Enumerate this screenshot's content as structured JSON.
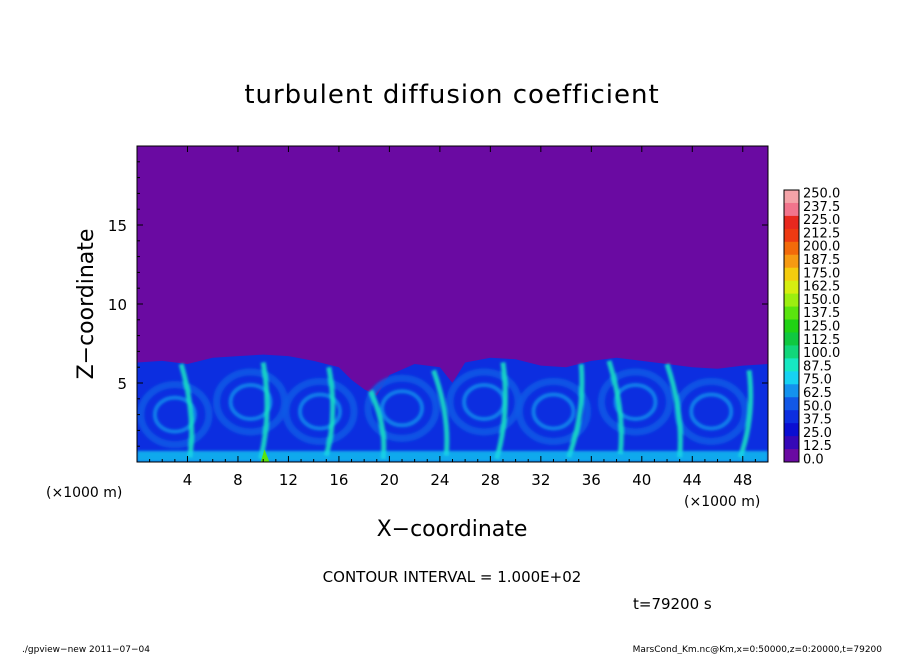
{
  "chart_data": {
    "type": "heatmap",
    "title": "turbulent diffusion coefficient",
    "xlabel": "X−coordinate",
    "ylabel": "Z−coordinate",
    "x_unit_left": "(×1000 m)",
    "x_unit_right": "(×1000 m)",
    "xlim": [
      0,
      50
    ],
    "ylim": [
      0,
      20
    ],
    "x_ticks": [
      4,
      8,
      12,
      16,
      20,
      24,
      28,
      32,
      36,
      40,
      44,
      48
    ],
    "x_tick_labels": [
      "4",
      "8",
      "12",
      "16",
      "20",
      "24",
      "28",
      "32",
      "36",
      "40",
      "44",
      "48"
    ],
    "y_ticks": [
      5,
      10,
      15
    ],
    "y_tick_labels": [
      "5",
      "10",
      "15"
    ],
    "background_value": 0.0,
    "turbulent_layer_top": [
      [
        0,
        6.3
      ],
      [
        2,
        6.4
      ],
      [
        4,
        6.2
      ],
      [
        6,
        6.6
      ],
      [
        8,
        6.7
      ],
      [
        10,
        6.8
      ],
      [
        12,
        6.7
      ],
      [
        14,
        6.4
      ],
      [
        16,
        6.0
      ],
      [
        17,
        5.2
      ],
      [
        18,
        4.6
      ],
      [
        19,
        4.2
      ],
      [
        20,
        5.5
      ],
      [
        22,
        6.2
      ],
      [
        24,
        6.0
      ],
      [
        25,
        5.0
      ],
      [
        26,
        6.3
      ],
      [
        28,
        6.6
      ],
      [
        30,
        6.5
      ],
      [
        32,
        6.1
      ],
      [
        34,
        6.0
      ],
      [
        36,
        6.4
      ],
      [
        38,
        6.6
      ],
      [
        40,
        6.4
      ],
      [
        42,
        6.2
      ],
      [
        44,
        6.0
      ],
      [
        46,
        5.9
      ],
      [
        48,
        6.1
      ],
      [
        50,
        6.2
      ]
    ],
    "colorbar": {
      "min": 0.0,
      "max": 250.0,
      "step": 12.5,
      "labels": [
        "250.0",
        "237.5",
        "225.0",
        "212.5",
        "200.0",
        "187.5",
        "175.0",
        "162.5",
        "150.0",
        "137.5",
        "125.0",
        "112.5",
        "100.0",
        "87.5",
        "75.0",
        "62.5",
        "50.0",
        "37.5",
        "25.0",
        "12.5",
        "0.0"
      ],
      "colors": [
        "#f4a3a8",
        "#f2748c",
        "#e8281e",
        "#ee3a12",
        "#f26a0a",
        "#f69a12",
        "#f4cc0e",
        "#d6ee10",
        "#9cee10",
        "#5ae40e",
        "#20d214",
        "#10c840",
        "#12d67a",
        "#16e8c2",
        "#16d2f2",
        "#1492ee",
        "#1258e6",
        "#0c2ee0",
        "#0a0ed2",
        "#3608b8",
        "#6a0aa2"
      ]
    },
    "legend_position": "right",
    "grid": false
  },
  "info": {
    "contour_interval": "CONTOUR INTERVAL = 1.000E+02",
    "time": "t=79200 s"
  },
  "footer": {
    "left": "./gpview−new   2011−07−04",
    "right": "MarsCond_Km.nc@Km,x=0:50000,z=0:20000,t=79200"
  }
}
